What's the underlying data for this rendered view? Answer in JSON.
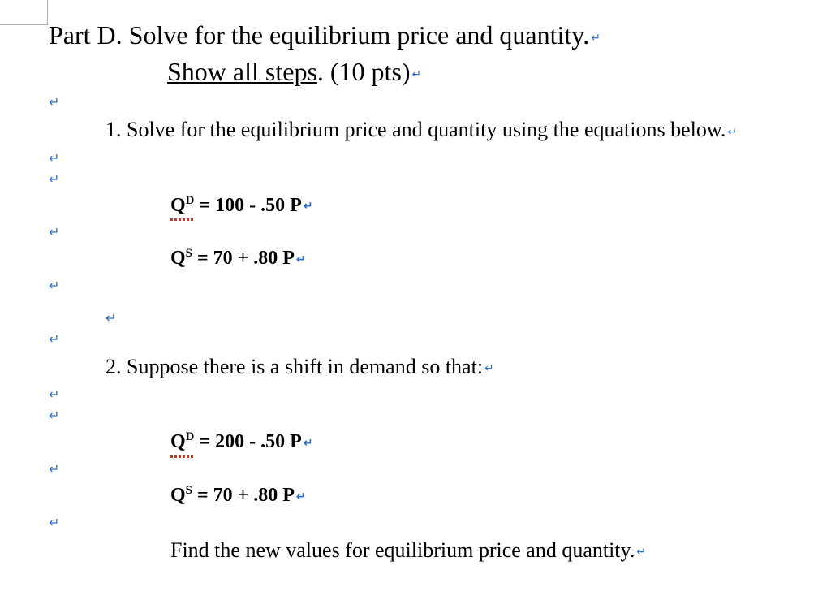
{
  "colors": {
    "text": "#000000",
    "paragraph_mark": "#2f6fd3",
    "proofing_underline": "#c0392b",
    "background": "#ffffff",
    "tab_border": "#b0b0b0"
  },
  "fonts": {
    "serif": "Times New Roman",
    "size_title_pt": 24,
    "size_body_pt": 20,
    "size_equation_pt": 18,
    "equation_weight": "bold"
  },
  "title": {
    "line1_prefix": "Part D. Solve for the equilibrium price and quantity.",
    "line2_underlined": "Show all steps",
    "line2_suffix": ". (10 pts)"
  },
  "paragraph_mark_glyph": "↵",
  "problems": [
    {
      "number": "1.",
      "prompt": "Solve for the equilibrium price and quantity using the equations below.",
      "equations": [
        {
          "var": "Q",
          "sup": "D",
          "rhs": " = 100 - .50 P",
          "proof_underline": true
        },
        {
          "var": "Q",
          "sup": "S",
          "rhs": " = 70 + .80 P",
          "proof_underline": false
        }
      ]
    },
    {
      "number": "2.",
      "prompt": "Suppose there is a shift in demand so that:",
      "equations": [
        {
          "var": "Q",
          "sup": "D",
          "rhs": " = 200 - .50 P",
          "proof_underline": true
        },
        {
          "var": "Q",
          "sup": "S",
          "rhs": " = 70 + .80 P",
          "proof_underline": false
        }
      ],
      "followup": "Find the new values for equilibrium price and quantity."
    }
  ]
}
